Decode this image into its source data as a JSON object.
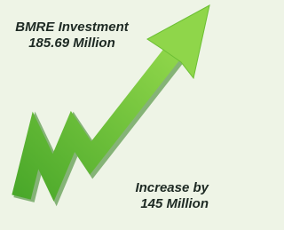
{
  "headline": {
    "label": "BMRE Investment",
    "value": "185.69 Million"
  },
  "increase": {
    "label": "Increase by",
    "value": "145 Million"
  }
}
